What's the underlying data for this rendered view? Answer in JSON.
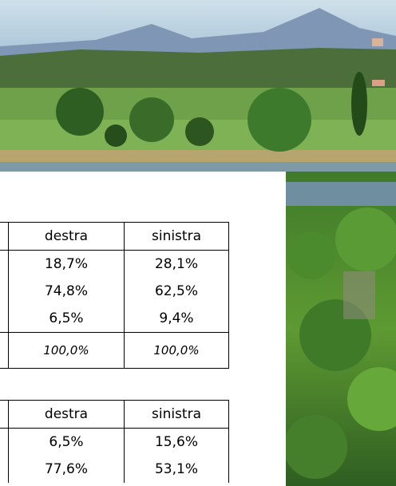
{
  "tables": [
    {
      "header": [
        "destra",
        "sinistra"
      ],
      "rows": [
        [
          "18,7%",
          "28,1%"
        ],
        [
          "74,8%",
          "62,5%"
        ],
        [
          "6,5%",
          "9,4%"
        ]
      ],
      "total": [
        "100,0%",
        "100,0%"
      ]
    },
    {
      "header": [
        "destra",
        "sinistra"
      ],
      "rows": [
        [
          "6,5%",
          "15,6%"
        ],
        [
          "77,6%",
          "53,1%"
        ]
      ]
    }
  ]
}
